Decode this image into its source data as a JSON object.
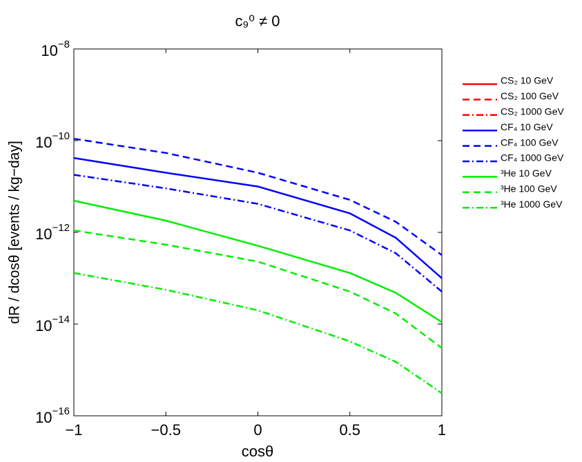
{
  "chart_data": {
    "type": "line",
    "title": "c₉⁰ ≠ 0",
    "xlabel": "cosθ",
    "ylabel": "dR / dcosθ  [events / kg−day]",
    "log_y": true,
    "legend": "outside-right",
    "x": [
      -1,
      -0.5,
      0,
      0.5,
      0.75,
      1
    ],
    "xlim": [
      -1,
      1
    ],
    "xticks": [
      {
        "value": -1,
        "label": "−1"
      },
      {
        "value": -0.5,
        "label": "−0.5"
      },
      0,
      0.5,
      1
    ],
    "ylim": [
      1e-16,
      1e-08
    ],
    "yticks": [
      {
        "value": 1e-08,
        "label": "10−8"
      },
      {
        "value": 1e-10,
        "label": "10−10"
      },
      {
        "value": 1e-12,
        "label": "10−12"
      },
      {
        "value": 1e-14,
        "label": "10−14"
      },
      {
        "value": 1e-16,
        "label": "10−16"
      }
    ],
    "series": [
      {
        "name": "CS₂ 10 GeV",
        "color": "#ff0000",
        "dash": "solid",
        "values": [
          null,
          null,
          null,
          null,
          null,
          null
        ]
      },
      {
        "name": "CS₂ 100 GeV",
        "color": "#ff0000",
        "dash": "dashed",
        "values": [
          null,
          null,
          null,
          null,
          null,
          null
        ]
      },
      {
        "name": "CS₂ 1000 GeV",
        "color": "#ff0000",
        "dash": "dashdot",
        "values": [
          null,
          null,
          null,
          null,
          null,
          null
        ]
      },
      {
        "name": "CF₄ 10 GeV",
        "color": "#0000ff",
        "dash": "solid",
        "values": [
          4.2e-11,
          2e-11,
          1e-11,
          2.6e-12,
          7.6e-13,
          1e-13
        ]
      },
      {
        "name": "CF₄ 100 GeV",
        "color": "#0000ff",
        "dash": "dashed",
        "values": [
          1.1e-10,
          5.4e-11,
          2e-11,
          5.1e-12,
          1.7e-12,
          3.2e-13
        ]
      },
      {
        "name": "CF₄ 1000 GeV",
        "color": "#0000ff",
        "dash": "dashdot",
        "values": [
          1.8e-11,
          9.1e-12,
          4.2e-12,
          1.1e-12,
          3.5e-13,
          5.1e-14
        ]
      },
      {
        "name": "³He 10 GeV",
        "color": "#00ee00",
        "dash": "solid",
        "values": [
          4.9e-12,
          1.8e-12,
          5.1e-13,
          1.3e-13,
          4.8e-14,
          1.1e-14
        ]
      },
      {
        "name": "³He 100 GeV",
        "color": "#00ee00",
        "dash": "dashed",
        "values": [
          1.1e-12,
          5.4e-13,
          2.3e-13,
          5.1e-14,
          1.7e-14,
          3e-15
        ]
      },
      {
        "name": "³He 1000 GeV",
        "color": "#00ee00",
        "dash": "dashdot",
        "values": [
          1.3e-13,
          5.6e-14,
          2e-14,
          4.2e-15,
          1.5e-15,
          3.1e-16
        ]
      }
    ]
  }
}
